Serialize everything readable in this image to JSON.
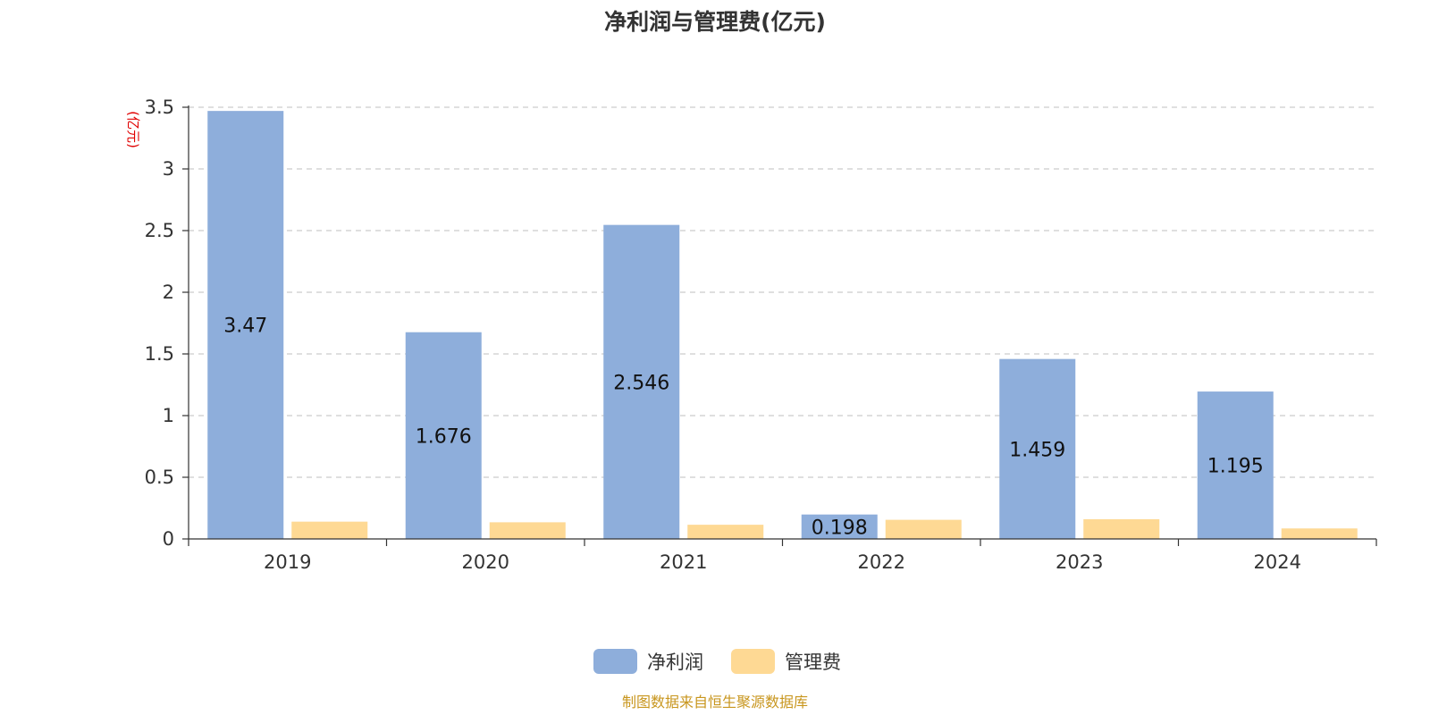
{
  "chart_data": {
    "type": "bar",
    "title": "净利润与管理费(亿元)",
    "unit_label": "(亿元)",
    "categories": [
      "2019",
      "2020",
      "2021",
      "2022",
      "2023",
      "2024"
    ],
    "series": [
      {
        "name": "净利润",
        "color": "#8eaedb",
        "values": [
          3.47,
          1.676,
          2.546,
          0.198,
          1.459,
          1.195
        ],
        "labels": [
          "3.47",
          "1.676",
          "2.546",
          "0.198",
          "1.459",
          "1.195"
        ]
      },
      {
        "name": "管理费",
        "color": "#fed994",
        "values": [
          0.14,
          0.135,
          0.115,
          0.155,
          0.16,
          0.085
        ]
      }
    ],
    "ylim": [
      0,
      3.5
    ],
    "yticks": [
      "0",
      "0.5",
      "1",
      "1.5",
      "2",
      "2.5",
      "3",
      "3.5"
    ],
    "grid": true,
    "legend_position": "bottom-center",
    "source_note": "制图数据来自恒生聚源数据库"
  }
}
